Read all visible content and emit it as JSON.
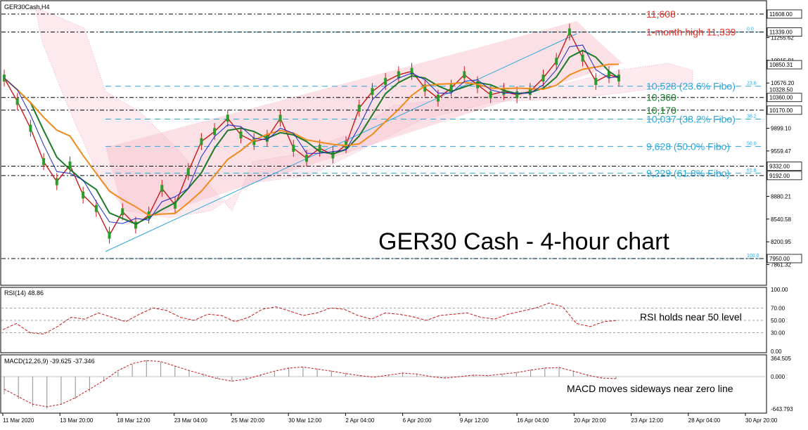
{
  "chart_data": {
    "type": "line",
    "symbol": "GER30Cash,H4",
    "title": "GER30 Cash - 4-hour chart",
    "x_labels": [
      "11 Mar 2020",
      "13 Mar 20:00",
      "18 Mar 12:00",
      "23 Mar 04:00",
      "25 Mar 20:00",
      "30 Mar 12:00",
      "2 Apr 04:00",
      "6 Apr 20:00",
      "9 Apr 12:00",
      "16 Apr 04:00",
      "20 Apr 20:00",
      "23 Apr 12:00",
      "28 Apr 04:00",
      "30 Apr 20:00"
    ],
    "price_axis_ticks": [
      "11255.62",
      "10915.91",
      "10576.20",
      "9899.10",
      "9559.47",
      "8880.21",
      "8540.58",
      "8200.95",
      "7861.32"
    ],
    "price_tags": [
      {
        "value": 11608,
        "label": "11608.00"
      },
      {
        "value": 11339,
        "label": "11339.00"
      },
      {
        "value": 10850.31,
        "label": "10850.31"
      },
      {
        "value": 10360,
        "label": "10360.00"
      },
      {
        "value": 10170,
        "label": "10170.00"
      },
      {
        "value": 9332,
        "label": "9332.00"
      },
      {
        "value": 9192,
        "label": "9192.00"
      },
      {
        "value": 7950,
        "label": "7950.00"
      }
    ],
    "price_overlap_label": "10328.50",
    "annotations": [
      {
        "text": "11,608",
        "value": 11608,
        "color": "#e8302a"
      },
      {
        "text": "1-month high 11,339",
        "value": 11339,
        "color": "#e8302a"
      },
      {
        "text": "10,528 (23.6% Fibo)",
        "value": 10528,
        "color": "#2ba6dc"
      },
      {
        "text": "10,360",
        "value": 10360,
        "color": "#1a7a2a"
      },
      {
        "text": "10,170",
        "value": 10170,
        "color": "#1a7a2a"
      },
      {
        "text": "10,037 (38.2% Fibo)",
        "value": 10037,
        "color": "#2ba6dc"
      },
      {
        "text": "9,628 (50.0% Fibo)",
        "value": 9628,
        "color": "#2ba6dc"
      },
      {
        "text": "9,229 (61.8% Fibo)",
        "value": 9229,
        "color": "#2ba6dc"
      }
    ],
    "fibo_levels": [
      {
        "label": "0.0",
        "value": 11339
      },
      {
        "label": "23.6",
        "value": 10528
      },
      {
        "label": "38.2",
        "value": 10037
      },
      {
        "label": "50.0",
        "value": 9628
      },
      {
        "label": "61.8",
        "value": 9229
      },
      {
        "label": "100.0",
        "value": 7950
      }
    ],
    "price_series": [
      {
        "i": 0,
        "close": 10650
      },
      {
        "i": 4,
        "close": 10300
      },
      {
        "i": 8,
        "close": 9900
      },
      {
        "i": 12,
        "close": 9400
      },
      {
        "i": 16,
        "close": 9100
      },
      {
        "i": 20,
        "close": 9350
      },
      {
        "i": 24,
        "close": 8900
      },
      {
        "i": 28,
        "close": 8700
      },
      {
        "i": 32,
        "close": 8300
      },
      {
        "i": 36,
        "close": 8650
      },
      {
        "i": 40,
        "close": 8450
      },
      {
        "i": 44,
        "close": 8600
      },
      {
        "i": 48,
        "close": 9000
      },
      {
        "i": 52,
        "close": 8750
      },
      {
        "i": 56,
        "close": 9250
      },
      {
        "i": 60,
        "close": 9700
      },
      {
        "i": 64,
        "close": 9850
      },
      {
        "i": 68,
        "close": 10050
      },
      {
        "i": 72,
        "close": 9800
      },
      {
        "i": 76,
        "close": 9700
      },
      {
        "i": 80,
        "close": 9750
      },
      {
        "i": 84,
        "close": 10050
      },
      {
        "i": 88,
        "close": 9600
      },
      {
        "i": 92,
        "close": 9450
      },
      {
        "i": 96,
        "close": 9600
      },
      {
        "i": 100,
        "close": 9500
      },
      {
        "i": 104,
        "close": 9650
      },
      {
        "i": 108,
        "close": 10200
      },
      {
        "i": 112,
        "close": 10450
      },
      {
        "i": 116,
        "close": 10600
      },
      {
        "i": 120,
        "close": 10700
      },
      {
        "i": 124,
        "close": 10750
      },
      {
        "i": 128,
        "close": 10500
      },
      {
        "i": 132,
        "close": 10350
      },
      {
        "i": 136,
        "close": 10500
      },
      {
        "i": 140,
        "close": 10700
      },
      {
        "i": 144,
        "close": 10550
      },
      {
        "i": 148,
        "close": 10400
      },
      {
        "i": 152,
        "close": 10450
      },
      {
        "i": 156,
        "close": 10400
      },
      {
        "i": 160,
        "close": 10450
      },
      {
        "i": 164,
        "close": 10650
      },
      {
        "i": 168,
        "close": 10900
      },
      {
        "i": 172,
        "close": 11339
      },
      {
        "i": 176,
        "close": 10950
      },
      {
        "i": 180,
        "close": 10600
      },
      {
        "i": 184,
        "close": 10700
      },
      {
        "i": 187,
        "close": 10650
      }
    ],
    "rsi": {
      "label": "RSI(14) 48.86",
      "value": 48.86,
      "ticks": [
        "100.00",
        "70.00",
        "50.00",
        "30.00",
        "0.00"
      ],
      "annotation": "RSI holds near 50 level",
      "series": [
        35,
        45,
        30,
        28,
        40,
        55,
        52,
        62,
        55,
        48,
        60,
        70,
        66,
        55,
        50,
        60,
        58,
        48,
        55,
        68,
        72,
        65,
        58,
        62,
        70,
        68,
        58,
        52,
        62,
        60,
        56,
        50,
        58,
        60,
        62,
        55,
        52,
        60,
        65,
        70,
        78,
        72,
        45,
        40,
        48,
        50
      ]
    },
    "macd": {
      "label": "MACD(12,26,9) -39.625 -37.346",
      "ticks": [
        "364.505",
        "0.000",
        "-643.793"
      ],
      "annotation": "MACD moves sideways near zero line",
      "histogram": [
        -350,
        -450,
        -600,
        -640,
        -560,
        -450,
        -300,
        -100,
        100,
        250,
        330,
        300,
        200,
        120,
        60,
        -40,
        -100,
        -60,
        20,
        100,
        180,
        200,
        160,
        120,
        80,
        30,
        0,
        40,
        80,
        60,
        -10,
        -30,
        10,
        40,
        20,
        60,
        90,
        140,
        180,
        200,
        120,
        40,
        -20,
        -40
      ],
      "signal": [
        -250,
        -400,
        -550,
        -600,
        -550,
        -420,
        -250,
        -80,
        120,
        260,
        320,
        300,
        210,
        120,
        40,
        -40,
        -90,
        -50,
        30,
        110,
        170,
        190,
        150,
        110,
        60,
        20,
        -10,
        30,
        70,
        50,
        0,
        -30,
        0,
        30,
        20,
        50,
        80,
        130,
        170,
        180,
        110,
        30,
        -30,
        -40
      ]
    }
  }
}
